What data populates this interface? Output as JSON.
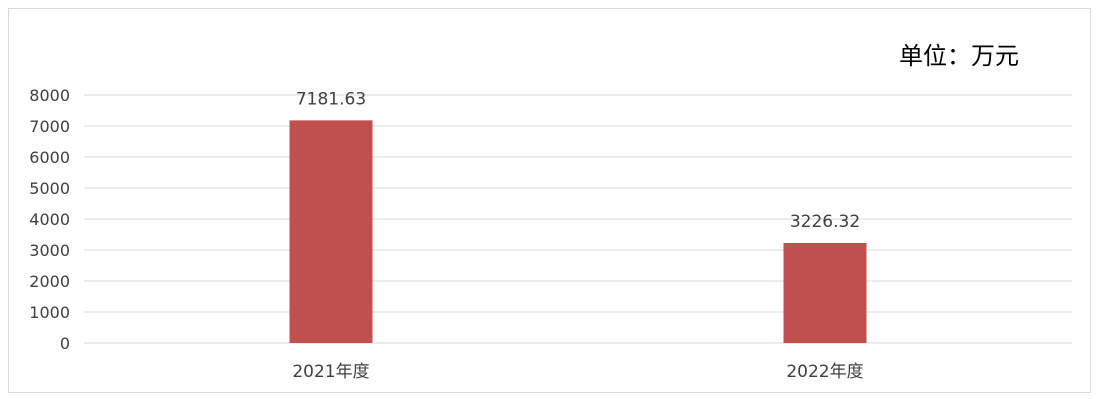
{
  "chart_data": {
    "type": "bar",
    "unit_label": "单位：万元",
    "categories": [
      "2021年度",
      "2022年度"
    ],
    "series": [
      {
        "values": [
          7181.63,
          3226.32
        ]
      }
    ],
    "data_labels": [
      "7181.63",
      "3226.32"
    ],
    "ylim": [
      0,
      8000
    ],
    "yticks": [
      0,
      1000,
      2000,
      3000,
      4000,
      5000,
      6000,
      7000,
      8000
    ],
    "grid": true,
    "legend": false,
    "colors": {
      "bar": "#c0504d",
      "grid": "#d9d9d9",
      "text": "#404040"
    }
  }
}
